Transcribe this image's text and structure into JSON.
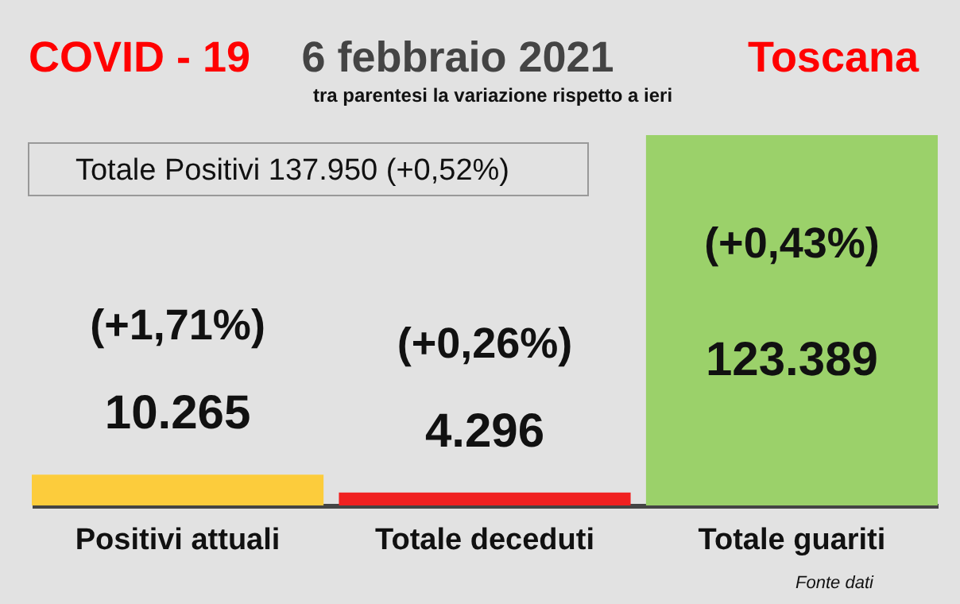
{
  "chart_data": {
    "type": "bar",
    "title": [
      "COVID - 19",
      "6 febbraio 2021",
      "Toscana"
    ],
    "subtitle": "tra parentesi la variazione rispetto a ieri",
    "categories": [
      "Positivi attuali",
      "Totale deceduti",
      "Totale guariti"
    ],
    "values": [
      10265,
      4296,
      123389
    ],
    "colors": [
      "#fccc3c",
      "#f02020",
      "#9bd16a"
    ],
    "value_labels": [
      "10.265",
      "4.296",
      "123.389"
    ],
    "annotations": [
      "Totale Positivi     137.950 (+0,52%)",
      "(+1,71%)",
      "(+0,26%)",
      "(+0,43%)",
      "Fonte dati"
    ]
  }
}
